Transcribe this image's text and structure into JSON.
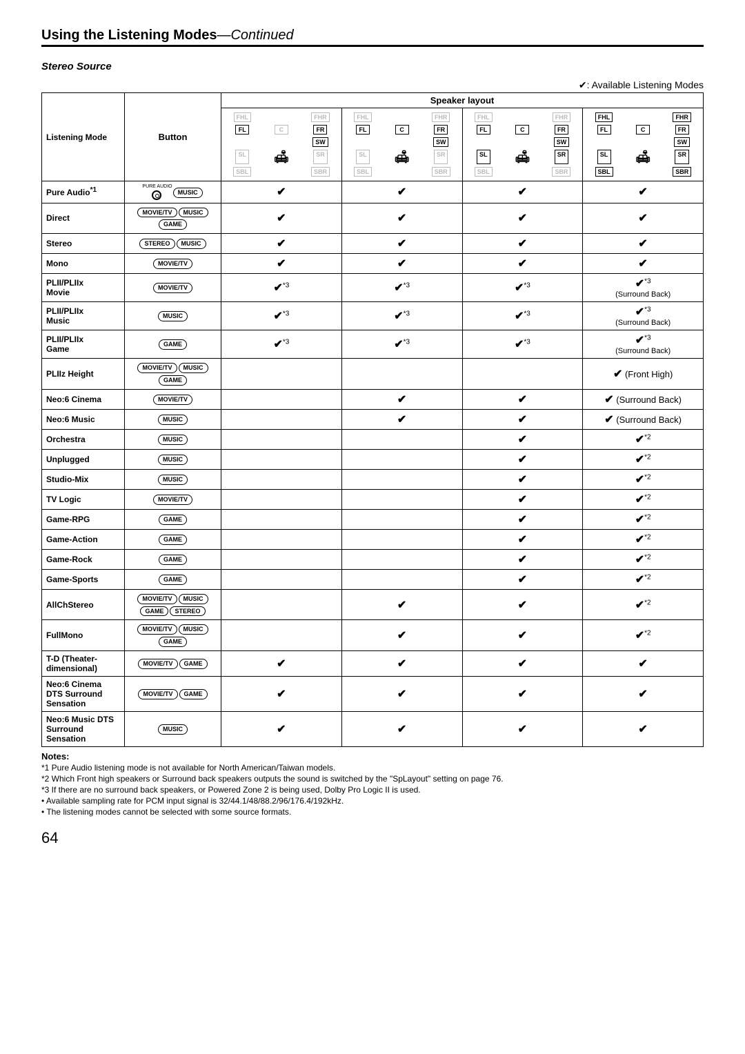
{
  "header": {
    "title": "Using the Listening Modes",
    "continued": "—Continued"
  },
  "subtitle": "Stereo Source",
  "avail_note": "✔: Available Listening Modes",
  "table": {
    "col_listening_mode": "Listening Mode",
    "col_button": "Button",
    "col_speaker_layout": "Speaker layout",
    "speakers": {
      "fhl": "FHL",
      "fhr": "FHR",
      "fl": "FL",
      "c": "C",
      "fr": "FR",
      "sw": "SW",
      "sl": "SL",
      "sr": "SR",
      "sbl": "SBL",
      "sbr": "SBR"
    },
    "layouts": [
      {
        "fhl": false,
        "fhr": false,
        "c": false,
        "sw": true,
        "sl": false,
        "sr": false,
        "sbl": false,
        "sbr": false
      },
      {
        "fhl": false,
        "fhr": false,
        "c": true,
        "sw": true,
        "sl": false,
        "sr": false,
        "sbl": false,
        "sbr": false
      },
      {
        "fhl": false,
        "fhr": false,
        "c": true,
        "sw": true,
        "sl": true,
        "sr": true,
        "sbl": false,
        "sbr": false
      },
      {
        "fhl": true,
        "fhr": true,
        "c": true,
        "sw": true,
        "sl": true,
        "sr": true,
        "sbl": true,
        "sbr": true
      }
    ],
    "buttons": {
      "movie": "MOVIE/TV",
      "music": "MUSIC",
      "game": "GAME",
      "stereo": "STEREO",
      "pure": "PURE AUDIO"
    },
    "rows": [
      {
        "mode": "Pure Audio",
        "sup": "*1",
        "btns": [
          "pure_icon",
          "music"
        ],
        "cells": [
          "✔",
          "✔",
          "✔",
          "✔"
        ]
      },
      {
        "mode": "Direct",
        "btns": [
          "movie",
          "music",
          "game"
        ],
        "cells": [
          "✔",
          "✔",
          "✔",
          "✔"
        ]
      },
      {
        "mode": "Stereo",
        "btns": [
          "stereo",
          "music"
        ],
        "cells": [
          "✔",
          "✔",
          "✔",
          "✔"
        ]
      },
      {
        "mode": "Mono",
        "btns": [
          "movie"
        ],
        "cells": [
          "✔",
          "✔",
          "✔",
          "✔"
        ]
      },
      {
        "mode": "PLII/PLIIx Movie",
        "btns": [
          "movie"
        ],
        "cells": [
          "✔*3",
          "✔*3",
          "✔*3",
          "✔*3|(Surround Back)"
        ]
      },
      {
        "mode": "PLII/PLIIx Music",
        "btns": [
          "music"
        ],
        "cells": [
          "✔*3",
          "✔*3",
          "✔*3",
          "✔*3|(Surround Back)"
        ]
      },
      {
        "mode": "PLII/PLIIx Game",
        "btns": [
          "game"
        ],
        "cells": [
          "✔*3",
          "✔*3",
          "✔*3",
          "✔*3|(Surround Back)"
        ]
      },
      {
        "mode": "PLIIz Height",
        "btns": [
          "movie",
          "music",
          "game"
        ],
        "cells": [
          "",
          "",
          "",
          "✔ (Front High)"
        ]
      },
      {
        "mode": "Neo:6 Cinema",
        "btns": [
          "movie"
        ],
        "cells": [
          "",
          "✔",
          "✔",
          "✔ (Surround Back)"
        ]
      },
      {
        "mode": "Neo:6 Music",
        "btns": [
          "music"
        ],
        "cells": [
          "",
          "✔",
          "✔",
          "✔ (Surround Back)"
        ]
      },
      {
        "mode": "Orchestra",
        "btns": [
          "music"
        ],
        "cells": [
          "",
          "",
          "✔",
          "✔*2"
        ]
      },
      {
        "mode": "Unplugged",
        "btns": [
          "music"
        ],
        "cells": [
          "",
          "",
          "✔",
          "✔*2"
        ]
      },
      {
        "mode": "Studio-Mix",
        "btns": [
          "music"
        ],
        "cells": [
          "",
          "",
          "✔",
          "✔*2"
        ]
      },
      {
        "mode": "TV Logic",
        "btns": [
          "movie"
        ],
        "cells": [
          "",
          "",
          "✔",
          "✔*2"
        ]
      },
      {
        "mode": "Game-RPG",
        "btns": [
          "game"
        ],
        "cells": [
          "",
          "",
          "✔",
          "✔*2"
        ]
      },
      {
        "mode": "Game-Action",
        "btns": [
          "game"
        ],
        "cells": [
          "",
          "",
          "✔",
          "✔*2"
        ]
      },
      {
        "mode": "Game-Rock",
        "btns": [
          "game"
        ],
        "cells": [
          "",
          "",
          "✔",
          "✔*2"
        ]
      },
      {
        "mode": "Game-Sports",
        "btns": [
          "game"
        ],
        "cells": [
          "",
          "",
          "✔",
          "✔*2"
        ]
      },
      {
        "mode": "AllChStereo",
        "btns": [
          "movie",
          "music",
          "game",
          "stereo"
        ],
        "twoRow": true,
        "cells": [
          "",
          "✔",
          "✔",
          "✔*2"
        ]
      },
      {
        "mode": "FullMono",
        "btns": [
          "movie",
          "music",
          "game"
        ],
        "cells": [
          "",
          "✔",
          "✔",
          "✔*2"
        ]
      },
      {
        "mode": "T-D (Theater-dimensional)",
        "btns": [
          "movie",
          "game"
        ],
        "cells": [
          "✔",
          "✔",
          "✔",
          "✔"
        ]
      },
      {
        "mode": "Neo:6 Cinema DTS Surround Sensation",
        "btns": [
          "movie",
          "game"
        ],
        "cells": [
          "✔",
          "✔",
          "✔",
          "✔"
        ]
      },
      {
        "mode": "Neo:6 Music DTS Surround Sensation",
        "btns": [
          "music"
        ],
        "cells": [
          "✔",
          "✔",
          "✔",
          "✔"
        ]
      }
    ]
  },
  "notes": {
    "title": "Notes:",
    "items": [
      "*1 Pure Audio listening mode is not available for North American/Taiwan models.",
      "*2 Which Front high speakers or Surround back speakers outputs the sound is switched by the \"SpLayout\" setting on page 76.",
      "*3 If there are no surround back speakers, or Powered Zone 2 is being used, Dolby Pro Logic II is used.",
      "• Available sampling rate for PCM input signal is 32/44.1/48/88.2/96/176.4/192kHz.",
      "• The listening modes cannot be selected with some source formats."
    ]
  },
  "page_number": "64"
}
